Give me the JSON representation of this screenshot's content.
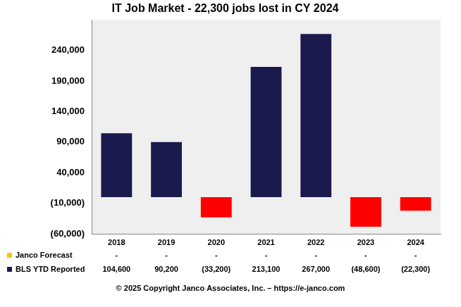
{
  "chart_data": {
    "type": "bar",
    "title": "IT Job Market - 22,300 jobs lost in CY 2024",
    "categories": [
      "2018",
      "2019",
      "2020",
      "2021",
      "2022",
      "2023",
      "2024"
    ],
    "series": [
      {
        "name": "Janco Forecast",
        "color": "#ffc000",
        "values": [
          null,
          null,
          null,
          null,
          null,
          null,
          null
        ],
        "value_labels": [
          "-",
          "-",
          "-",
          "-",
          "-",
          "-",
          "-"
        ]
      },
      {
        "name": "BLS YTD Reported",
        "color": "#1b1a4d",
        "colors": [
          "#1b1a4d",
          "#1b1a4d",
          "#ff0000",
          "#1b1a4d",
          "#1b1a4d",
          "#ff0000",
          "#ff0000"
        ],
        "values": [
          104600,
          90200,
          -33200,
          213100,
          267000,
          -48600,
          -22300
        ],
        "value_labels": [
          "104,600",
          "90,200",
          "(33,200)",
          "213,100",
          "267,000",
          "(48,600)",
          "(22,300)"
        ]
      }
    ],
    "ylim": [
      -60000,
      290000
    ],
    "yticks": [
      {
        "value": -60000,
        "label": "(60,000)"
      },
      {
        "value": -10000,
        "label": "(10,000)"
      },
      {
        "value": 40000,
        "label": "40,000"
      },
      {
        "value": 90000,
        "label": "90,000"
      },
      {
        "value": 140000,
        "label": "140,000"
      },
      {
        "value": 190000,
        "label": "190,000"
      },
      {
        "value": 240000,
        "label": "240,000"
      }
    ],
    "grid": false,
    "legend": "bottom",
    "annotations": [
      "© 2025 Copyright Janco Associates, Inc. – https://e-janco.com"
    ]
  }
}
